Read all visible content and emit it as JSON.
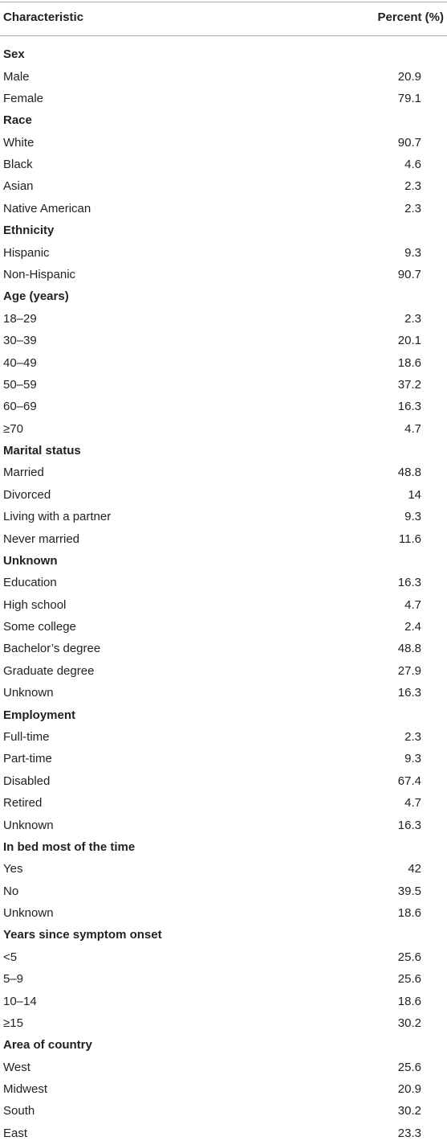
{
  "table": {
    "header": {
      "characteristic": "Characteristic",
      "percent": "Percent (%)"
    },
    "sections": [
      {
        "title": "Sex",
        "rows": [
          {
            "label": "Male",
            "value": 20.9
          },
          {
            "label": "Female",
            "value": 79.1
          }
        ]
      },
      {
        "title": "Race",
        "rows": [
          {
            "label": "White",
            "value": 90.7
          },
          {
            "label": "Black",
            "value": 4.6
          },
          {
            "label": "Asian",
            "value": 2.3
          },
          {
            "label": "Native American",
            "value": 2.3
          }
        ]
      },
      {
        "title": "Ethnicity",
        "rows": [
          {
            "label": "Hispanic",
            "value": 9.3
          },
          {
            "label": "Non-Hispanic",
            "value": 90.7
          }
        ]
      },
      {
        "title": "Age (years)",
        "rows": [
          {
            "label": "18–29",
            "value": 2.3
          },
          {
            "label": "30–39",
            "value": 20.1
          },
          {
            "label": "40–49",
            "value": 18.6
          },
          {
            "label": "50–59",
            "value": 37.2
          },
          {
            "label": "60–69",
            "value": 16.3
          },
          {
            "label": "≥70",
            "value": 4.7
          }
        ]
      },
      {
        "title": "Marital status",
        "rows": [
          {
            "label": "Married",
            "value": 48.8
          },
          {
            "label": "Divorced",
            "value": 14
          },
          {
            "label": "Living with a partner",
            "value": 9.3
          },
          {
            "label": "Never married",
            "value": 11.6
          }
        ]
      },
      {
        "title": "Unknown",
        "rows": [
          {
            "label": "Education",
            "value": 16.3
          },
          {
            "label": "High school",
            "value": 4.7
          },
          {
            "label": "Some college",
            "value": 2.4
          },
          {
            "label": "Bachelor’s degree",
            "value": 48.8
          },
          {
            "label": "Graduate degree",
            "value": 27.9
          },
          {
            "label": "Unknown",
            "value": 16.3
          }
        ]
      },
      {
        "title": "Employment",
        "rows": [
          {
            "label": "Full-time",
            "value": 2.3
          },
          {
            "label": "Part-time",
            "value": 9.3
          },
          {
            "label": "Disabled",
            "value": 67.4
          },
          {
            "label": "Retired",
            "value": 4.7
          },
          {
            "label": "Unknown",
            "value": 16.3
          }
        ]
      },
      {
        "title": "In bed most of the time",
        "rows": [
          {
            "label": "Yes",
            "value": 42
          },
          {
            "label": "No",
            "value": 39.5
          },
          {
            "label": "Unknown",
            "value": 18.6
          }
        ]
      },
      {
        "title": "Years since symptom onset",
        "rows": [
          {
            "label": "<5",
            "value": 25.6
          },
          {
            "label": "5–9",
            "value": 25.6
          },
          {
            "label": "10–14",
            "value": 18.6
          },
          {
            "label": "≥15",
            "value": 30.2
          }
        ]
      },
      {
        "title": "Area of country",
        "rows": [
          {
            "label": "West",
            "value": 25.6
          },
          {
            "label": "Midwest",
            "value": 20.9
          },
          {
            "label": "South",
            "value": 30.2
          },
          {
            "label": "East",
            "value": 23.3
          }
        ]
      }
    ]
  }
}
